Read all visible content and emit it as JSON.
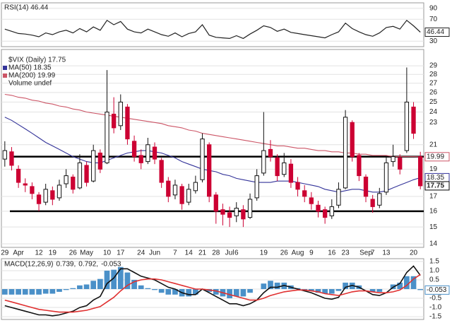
{
  "chart_data": [
    {
      "type": "line",
      "title": "RSI(14) 46.44",
      "color": "#222222",
      "values": [
        52,
        48,
        44,
        43,
        41,
        38,
        45,
        42,
        47,
        50,
        45,
        53,
        47,
        56,
        50,
        68,
        60,
        66,
        52,
        47,
        45,
        52,
        47,
        42,
        39,
        45,
        38,
        44,
        47,
        60,
        41,
        37,
        36,
        35,
        40,
        35,
        43,
        50,
        58,
        55,
        48,
        52,
        46,
        44,
        42,
        40,
        38,
        36,
        42,
        47,
        63,
        53,
        47,
        42,
        39,
        45,
        55,
        57,
        52,
        68,
        58,
        46.44
      ],
      "end_label": "46.44",
      "ylim": [
        20,
        100
      ],
      "yticks": [
        30,
        70,
        90
      ],
      "grid": true
    },
    {
      "type": "candlestick",
      "title": "$VIX (Daily) 17.75",
      "categories": [
        "29",
        null,
        "Apr",
        null,
        null,
        "12",
        null,
        "19",
        null,
        null,
        "26",
        null,
        "May",
        null,
        null,
        "10",
        null,
        "17",
        null,
        null,
        "24",
        null,
        "Jun",
        null,
        null,
        "7",
        null,
        "14",
        null,
        "21",
        null,
        "28",
        null,
        "Jul",
        "6",
        null,
        null,
        null,
        "19",
        null,
        null,
        "26",
        null,
        "Aug",
        null,
        "9",
        null,
        null,
        "16",
        null,
        "23",
        null,
        null,
        "Sep",
        "7",
        null,
        "13",
        null,
        null,
        null,
        "20",
        null
      ],
      "open": [
        19.8,
        20.4,
        19.0,
        17.9,
        17.7,
        17.1,
        16.6,
        17.4,
        16.9,
        17.9,
        18.4,
        17.6,
        19.3,
        18.1,
        20.3,
        19.5,
        23.8,
        22.7,
        24.5,
        21.3,
        20.1,
        19.6,
        20.8,
        19.7,
        18.1,
        17.1,
        17.7,
        16.6,
        17.4,
        18.2,
        21.0,
        17.1,
        16.1,
        15.9,
        15.7,
        16.1,
        15.6,
        16.9,
        18.7,
        20.6,
        19.9,
        18.6,
        19.4,
        18.0,
        17.4,
        16.9,
        16.4,
        16.1,
        15.7,
        16.4,
        17.6,
        23.0,
        20.1,
        18.4,
        16.8,
        16.4,
        17.3,
        19.6,
        19.9,
        20.5,
        24.5,
        20.0
      ],
      "high": [
        21.3,
        20.8,
        19.3,
        18.3,
        18.0,
        17.3,
        17.9,
        17.7,
        18.2,
        19.0,
        18.6,
        20.2,
        19.6,
        21.0,
        20.6,
        28.5,
        25.5,
        25.8,
        24.8,
        21.8,
        20.6,
        21.6,
        21.2,
        19.9,
        18.4,
        18.2,
        17.9,
        17.9,
        18.5,
        22.0,
        21.2,
        17.3,
        16.5,
        16.3,
        16.6,
        16.4,
        17.2,
        19.0,
        24.0,
        21.4,
        20.2,
        20.3,
        19.8,
        18.4,
        17.8,
        17.3,
        16.7,
        16.3,
        16.8,
        18.0,
        24.2,
        23.2,
        20.3,
        18.6,
        17.1,
        17.6,
        20.0,
        21.0,
        20.2,
        28.8,
        25.0,
        20.4
      ],
      "low": [
        19.2,
        18.9,
        17.6,
        17.3,
        16.8,
        16.0,
        16.4,
        16.4,
        16.7,
        17.6,
        17.2,
        17.5,
        17.7,
        18.0,
        18.7,
        19.4,
        22.0,
        22.3,
        21.0,
        19.6,
        19.0,
        19.4,
        19.4,
        17.6,
        16.6,
        16.8,
        16.1,
        16.4,
        17.2,
        18.0,
        16.6,
        15.2,
        15.1,
        15.0,
        15.3,
        15.0,
        15.5,
        16.7,
        18.5,
        19.6,
        18.1,
        18.4,
        17.6,
        17.0,
        16.6,
        16.1,
        15.6,
        15.2,
        15.5,
        16.2,
        17.5,
        19.6,
        18.1,
        16.6,
        15.9,
        16.2,
        17.1,
        19.2,
        18.6,
        20.3,
        21.5,
        17.5
      ],
      "close": [
        20.5,
        19.3,
        18.0,
        17.8,
        17.2,
        16.5,
        17.5,
        16.8,
        17.8,
        18.5,
        17.5,
        19.5,
        18.0,
        20.5,
        19.0,
        24.0,
        22.5,
        25.0,
        21.5,
        20.0,
        19.5,
        21.0,
        19.8,
        18.0,
        17.0,
        17.8,
        16.5,
        17.5,
        18.0,
        21.5,
        17.0,
        16.0,
        15.8,
        15.6,
        16.2,
        15.5,
        16.8,
        18.5,
        20.5,
        20.0,
        18.5,
        19.5,
        18.0,
        17.5,
        17.0,
        16.5,
        16.0,
        15.6,
        16.3,
        17.5,
        23.5,
        20.0,
        18.5,
        17.0,
        16.3,
        17.2,
        19.5,
        20.0,
        19.0,
        25.0,
        22.0,
        17.75
      ],
      "up_color": "#111111",
      "down_color": "#cc0033",
      "end_label": "17.75",
      "series": [
        {
          "name": "MA(50) 18.35",
          "color": "#333399",
          "end_label": "18.35",
          "values": [
            23.5,
            23.2,
            22.8,
            22.4,
            22.0,
            21.6,
            21.2,
            20.9,
            20.6,
            20.3,
            20.0,
            19.8,
            19.6,
            19.5,
            19.5,
            19.7,
            19.9,
            20.1,
            20.3,
            20.4,
            20.5,
            20.5,
            20.4,
            20.3,
            20.1,
            19.9,
            19.6,
            19.4,
            19.2,
            19.0,
            18.9,
            18.8,
            18.6,
            18.5,
            18.3,
            18.2,
            18.1,
            18.0,
            18.0,
            18.0,
            18.1,
            18.1,
            18.1,
            18.0,
            17.9,
            17.8,
            17.7,
            17.5,
            17.4,
            17.3,
            17.4,
            17.5,
            17.5,
            17.4,
            17.3,
            17.3,
            17.4,
            17.6,
            17.8,
            18.0,
            18.2,
            18.35
          ]
        },
        {
          "name": "MA(200) 19.99",
          "color": "#cc5566",
          "end_label": "19.99",
          "values": [
            25.8,
            25.7,
            25.5,
            25.4,
            25.2,
            25.1,
            24.9,
            24.8,
            24.6,
            24.5,
            24.3,
            24.2,
            24.0,
            23.9,
            23.8,
            23.7,
            23.6,
            23.5,
            23.4,
            23.3,
            23.2,
            23.1,
            23.0,
            22.9,
            22.7,
            22.6,
            22.5,
            22.3,
            22.2,
            22.0,
            21.9,
            21.8,
            21.7,
            21.6,
            21.5,
            21.4,
            21.3,
            21.2,
            21.1,
            21.0,
            20.9,
            20.9,
            20.8,
            20.7,
            20.7,
            20.6,
            20.5,
            20.5,
            20.4,
            20.4,
            20.3,
            20.3,
            20.2,
            20.2,
            20.1,
            20.1,
            20.1,
            20.0,
            20.0,
            20.0,
            20.0,
            19.99
          ]
        }
      ],
      "volume_label": "Volume undef",
      "hlines": [
        20,
        16
      ],
      "hline_color": "#000000",
      "log": true,
      "ylim": [
        13.8,
        31
      ],
      "yticks": [
        14,
        15,
        16,
        17,
        19,
        21,
        23,
        24,
        25,
        26,
        27,
        28,
        29
      ],
      "grid": true
    },
    {
      "type": "combo",
      "title": "MACD(12,26,9)",
      "series": [
        {
          "name": "0.739,",
          "kind": "line",
          "color": "#111111",
          "values": [
            -0.9,
            -1.0,
            -1.1,
            -1.2,
            -1.3,
            -1.4,
            -1.4,
            -1.45,
            -1.4,
            -1.3,
            -1.2,
            -1.0,
            -0.9,
            -0.6,
            -0.4,
            0.3,
            0.6,
            1.1,
            1.1,
            0.9,
            0.7,
            0.6,
            0.5,
            0.3,
            0.1,
            0.0,
            -0.2,
            -0.3,
            -0.3,
            0.0,
            -0.2,
            -0.4,
            -0.6,
            -0.8,
            -0.8,
            -0.9,
            -0.8,
            -0.6,
            -0.2,
            0.1,
            0.1,
            0.2,
            0.1,
            0.0,
            -0.1,
            -0.2,
            -0.35,
            -0.5,
            -0.55,
            -0.45,
            0.1,
            0.2,
            0.1,
            -0.1,
            -0.3,
            -0.35,
            -0.2,
            0.1,
            0.3,
            0.9,
            1.25,
            0.739
          ]
        },
        {
          "name": "0.792,",
          "kind": "line",
          "color": "#e03030",
          "values": [
            -0.6,
            -0.7,
            -0.8,
            -0.9,
            -1.0,
            -1.1,
            -1.15,
            -1.2,
            -1.25,
            -1.25,
            -1.25,
            -1.2,
            -1.15,
            -1.05,
            -0.95,
            -0.7,
            -0.45,
            -0.1,
            0.2,
            0.4,
            0.5,
            0.55,
            0.55,
            0.5,
            0.4,
            0.3,
            0.2,
            0.1,
            0.0,
            0.0,
            -0.05,
            -0.1,
            -0.2,
            -0.3,
            -0.4,
            -0.5,
            -0.6,
            -0.6,
            -0.5,
            -0.35,
            -0.25,
            -0.15,
            -0.1,
            -0.05,
            -0.05,
            -0.1,
            -0.15,
            -0.25,
            -0.3,
            -0.35,
            -0.25,
            -0.15,
            -0.1,
            -0.1,
            -0.15,
            -0.2,
            -0.2,
            -0.15,
            -0.05,
            0.2,
            0.55,
            0.792
          ]
        },
        {
          "name": "-0.053",
          "kind": "bar",
          "color": "#4a90c8",
          "end_label": "-0.053",
          "values": [
            -0.3,
            -0.3,
            -0.3,
            -0.3,
            -0.3,
            -0.3,
            -0.25,
            -0.25,
            -0.15,
            -0.05,
            0.05,
            0.2,
            0.25,
            0.45,
            0.55,
            1.0,
            1.05,
            1.2,
            0.9,
            0.5,
            0.2,
            0.05,
            -0.05,
            -0.2,
            -0.3,
            -0.3,
            -0.4,
            -0.4,
            -0.3,
            0.0,
            -0.15,
            -0.3,
            -0.4,
            -0.5,
            -0.4,
            -0.4,
            -0.2,
            0.0,
            0.3,
            0.45,
            0.35,
            0.35,
            0.2,
            0.05,
            -0.05,
            -0.1,
            -0.2,
            -0.25,
            -0.25,
            -0.1,
            0.35,
            0.35,
            0.2,
            0.0,
            -0.15,
            -0.15,
            0.0,
            0.25,
            0.35,
            0.7,
            0.7,
            -0.053
          ]
        }
      ],
      "ylim": [
        -1.65,
        1.65
      ],
      "yticks": [
        -1.5,
        {
          "value": -1,
          "label": "-1.0"
        },
        -0.5,
        {
          "value": 0,
          "label": "0.0"
        },
        0.5,
        {
          "value": 1,
          "label": "1.0"
        },
        1.5
      ],
      "grid": true
    }
  ]
}
